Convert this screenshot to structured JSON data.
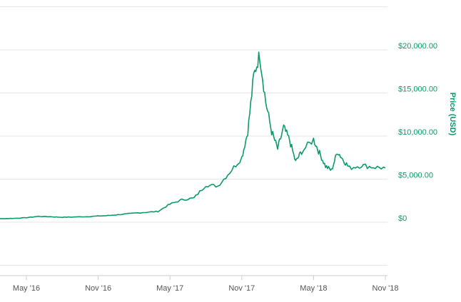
{
  "chart_data": {
    "type": "line",
    "title": "",
    "xlabel": "",
    "ylabel": "Price (USD)",
    "grid": true,
    "legend": "none",
    "line_color": "#0a9a6b",
    "y_tick_labels": [
      "$0",
      "$5,000.00",
      "$10,000.00",
      "$15,000.00",
      "$20,000.00"
    ],
    "y_ticks": [
      0,
      5000,
      10000,
      15000,
      20000
    ],
    "x_tick_labels": [
      "May '16",
      "Nov '16",
      "May '17",
      "Nov '17",
      "May '18",
      "Nov '18"
    ],
    "x_ticks": [
      "2016-05",
      "2016-11",
      "2017-05",
      "2017-11",
      "2018-05",
      "2018-11"
    ],
    "ylim": [
      -6000,
      25000
    ],
    "xlim": [
      "2016-01",
      "2018-11"
    ],
    "series": [
      {
        "x": [
          "2016-01",
          "2016-02",
          "2016-03",
          "2016-04",
          "2016-05",
          "2016-06",
          "2016-07",
          "2016-08",
          "2016-09",
          "2016-10",
          "2016-11",
          "2016-12",
          "2017-01",
          "2017-02",
          "2017-03",
          "2017-04",
          "2017-05",
          "2017-06",
          "2017-07",
          "2017-08",
          "2017-09",
          "2017-10",
          "2017-11",
          "2017-11b",
          "2017-12",
          "2017-12b",
          "2018-01",
          "2018-01b",
          "2018-02",
          "2018-02b",
          "2018-03",
          "2018-03b",
          "2018-04",
          "2018-05",
          "2018-05b",
          "2018-06",
          "2018-06b",
          "2018-07",
          "2018-07b",
          "2018-08",
          "2018-09",
          "2018-10",
          "2018-11"
        ],
        "y": [
          430,
          400,
          415,
          450,
          530,
          680,
          640,
          575,
          610,
          640,
          720,
          790,
          920,
          1050,
          1150,
          1250,
          2100,
          2600,
          2800,
          4300,
          4200,
          5800,
          7500,
          10500,
          17000,
          19500,
          14000,
          10500,
          8500,
          11000,
          9500,
          7000,
          8200,
          9600,
          8000,
          6500,
          6000,
          8200,
          7200,
          6300,
          6600,
          6400,
          6300
        ]
      }
    ]
  }
}
